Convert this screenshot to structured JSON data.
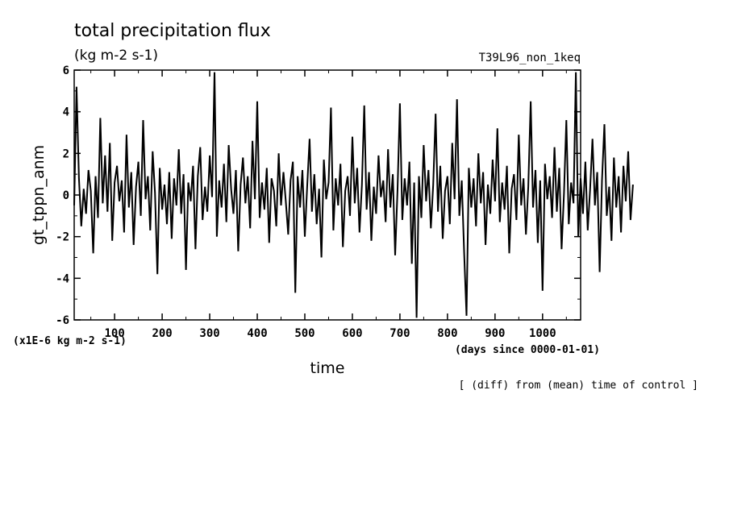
{
  "chart_data": {
    "type": "line",
    "title": "total precipitation flux",
    "units": "(kg m-2 s-1)",
    "run_label": "T39L96_non_1keq",
    "ylabel": "gt_tppn_anm",
    "xlabel": "time",
    "x_units": "(days since 0000-01-01)",
    "y_scale_note": "(x1E-6 kg m-2 s-1)",
    "footnote": "[ (diff) from (mean) time of control ]",
    "xlim": [
      15,
      1080
    ],
    "ylim": [
      -6,
      6
    ],
    "x_ticks": [
      100,
      200,
      300,
      400,
      500,
      600,
      700,
      800,
      900,
      1000
    ],
    "x_tick_labels": [
      "100",
      "200",
      "300",
      "400",
      "500",
      "600",
      "700",
      "800",
      "900",
      "1000"
    ],
    "y_ticks": [
      -6,
      -4,
      -2,
      0,
      2,
      4,
      6
    ],
    "y_tick_labels": [
      "-6",
      "-4",
      "-2",
      "0",
      "2",
      "4",
      "6"
    ],
    "grid": false,
    "line_color": "#000000",
    "series": [
      {
        "x_start": 15,
        "x_step": 5,
        "values": [
          -0.5,
          5.2,
          0.8,
          -1.5,
          0.3,
          -0.9,
          1.2,
          0.2,
          -2.8,
          0.9,
          -1.1,
          3.7,
          -0.4,
          1.9,
          -0.8,
          2.5,
          -2.2,
          0.6,
          1.4,
          -0.3,
          0.7,
          -1.8,
          2.9,
          -0.6,
          1.1,
          -2.4,
          0.4,
          1.6,
          -1.0,
          3.6,
          -0.2,
          0.9,
          -1.7,
          2.1,
          0.1,
          -3.8,
          1.3,
          -0.7,
          0.5,
          -1.4,
          1.1,
          -2.1,
          0.8,
          -0.5,
          2.2,
          -0.9,
          1.0,
          -3.6,
          0.6,
          -0.3,
          1.4,
          -2.6,
          0.9,
          2.3,
          -1.2,
          0.4,
          -0.8,
          1.9,
          -0.1,
          5.9,
          -2.0,
          0.7,
          -0.6,
          1.5,
          -1.3,
          2.4,
          0.3,
          -0.9,
          1.2,
          -2.7,
          0.5,
          1.8,
          -0.4,
          0.9,
          -1.6,
          2.6,
          -0.2,
          4.5,
          -1.1,
          0.6,
          -0.7,
          1.3,
          -2.3,
          0.8,
          0.2,
          -1.5,
          2.0,
          -0.5,
          1.1,
          -0.3,
          -1.9,
          0.7,
          1.6,
          -4.7,
          0.9,
          -0.6,
          1.2,
          -2.0,
          0.4,
          2.7,
          -0.8,
          1.0,
          -1.4,
          0.3,
          -3.0,
          1.7,
          -0.2,
          0.6,
          4.2,
          -1.7,
          0.8,
          -0.5,
          1.5,
          -2.5,
          0.2,
          0.9,
          -1.0,
          2.8,
          -0.4,
          1.3,
          -1.8,
          0.5,
          4.3,
          -0.7,
          1.1,
          -2.2,
          0.4,
          -0.9,
          1.9,
          -0.1,
          0.7,
          -1.3,
          2.2,
          -0.6,
          1.0,
          -2.9,
          0.3,
          4.4,
          -1.2,
          0.8,
          -0.5,
          1.6,
          -3.3,
          0.6,
          -5.9,
          0.9,
          -1.1,
          2.4,
          -0.3,
          1.2,
          -1.6,
          0.5,
          3.9,
          -0.8,
          1.4,
          -2.1,
          0.2,
          0.9,
          -1.4,
          2.5,
          -0.2,
          4.6,
          -1.0,
          0.7,
          -2.7,
          -5.8,
          1.3,
          -0.6,
          0.8,
          -1.5,
          2.0,
          -0.4,
          1.1,
          -2.4,
          0.5,
          -0.9,
          1.7,
          -0.3,
          3.2,
          -1.3,
          0.6,
          -0.7,
          1.4,
          -2.8,
          0.3,
          1.0,
          -1.2,
          2.9,
          -0.5,
          0.8,
          -1.9,
          0.4,
          4.5,
          -0.6,
          1.2,
          -2.3,
          0.7,
          -4.6,
          1.5,
          -0.2,
          0.9,
          -1.1,
          2.3,
          -0.8,
          1.3,
          -2.6,
          0.1,
          3.6,
          -1.4,
          0.6,
          -0.4,
          5.9,
          -2.0,
          0.8,
          -0.9,
          1.6,
          -1.7,
          0.3,
          2.7,
          -0.5,
          1.1,
          -3.7,
          0.7,
          3.4,
          -1.0,
          0.4,
          -2.2,
          1.8,
          -0.6,
          0.9,
          -1.8,
          1.4,
          -0.3,
          2.1,
          -1.2,
          0.5
        ]
      }
    ]
  }
}
